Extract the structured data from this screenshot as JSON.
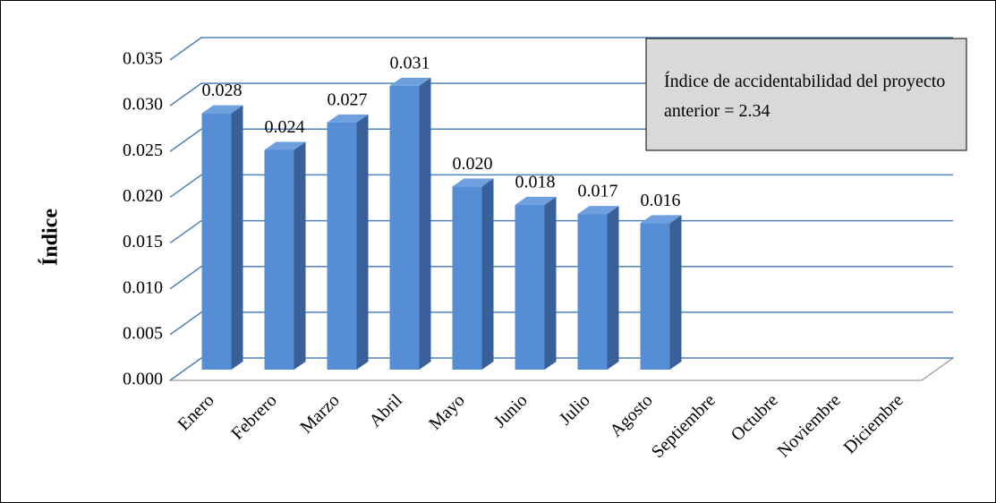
{
  "chart_data": {
    "type": "bar",
    "ylabel": "Índice",
    "categories": [
      "Enero",
      "Febrero",
      "Marzo",
      "Abril",
      "Mayo",
      "Junio",
      "Julio",
      "Agosto",
      "Septiembre",
      "Octubre",
      "Noviembre",
      "Diciembre"
    ],
    "values": [
      0.028,
      0.024,
      0.027,
      0.031,
      0.02,
      0.018,
      0.017,
      0.016,
      null,
      null,
      null,
      null
    ],
    "value_labels": [
      "0.028",
      "0.024",
      "0.027",
      "0.031",
      "0.020",
      "0.018",
      "0.017",
      "0.016",
      null,
      null,
      null,
      null
    ],
    "color": "#558ed5",
    "ylim": [
      0,
      0.035
    ],
    "yticks": [
      {
        "value": 0,
        "label": "0.000"
      },
      {
        "value": 0.005,
        "label": "0.005"
      },
      {
        "value": 0.01,
        "label": "0.010"
      },
      {
        "value": 0.015,
        "label": "0.015"
      },
      {
        "value": 0.02,
        "label": "0.020"
      },
      {
        "value": 0.025,
        "label": "0.025"
      },
      {
        "value": 0.03,
        "label": "0.030"
      },
      {
        "value": 0.035,
        "label": "0.035"
      }
    ],
    "grid": true,
    "annotation": "Índice de accidentabilidad del proyecto anterior = 2.34"
  }
}
